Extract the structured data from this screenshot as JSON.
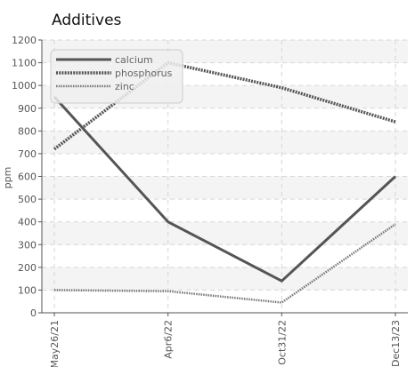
{
  "chart_data": {
    "type": "line",
    "title": "Additives",
    "xlabel": "",
    "ylabel": "ppm",
    "categories": [
      "May26/21",
      "Apr6/22",
      "Oct31/22",
      "Dec13/23"
    ],
    "ylim": [
      0,
      1200
    ],
    "yticks": [
      0,
      100,
      200,
      300,
      400,
      500,
      600,
      700,
      800,
      900,
      1000,
      1100,
      1200
    ],
    "grid": true,
    "legend_position": "top-left",
    "series": [
      {
        "name": "calcium",
        "values": [
          950,
          400,
          140,
          600
        ],
        "style": "solid",
        "color": "#555555"
      },
      {
        "name": "phosphorus",
        "values": [
          720,
          1100,
          990,
          840
        ],
        "style": "dotted",
        "color": "#555555"
      },
      {
        "name": "zinc",
        "values": [
          100,
          95,
          45,
          390
        ],
        "style": "dotted-thin",
        "color": "#777777"
      }
    ]
  }
}
